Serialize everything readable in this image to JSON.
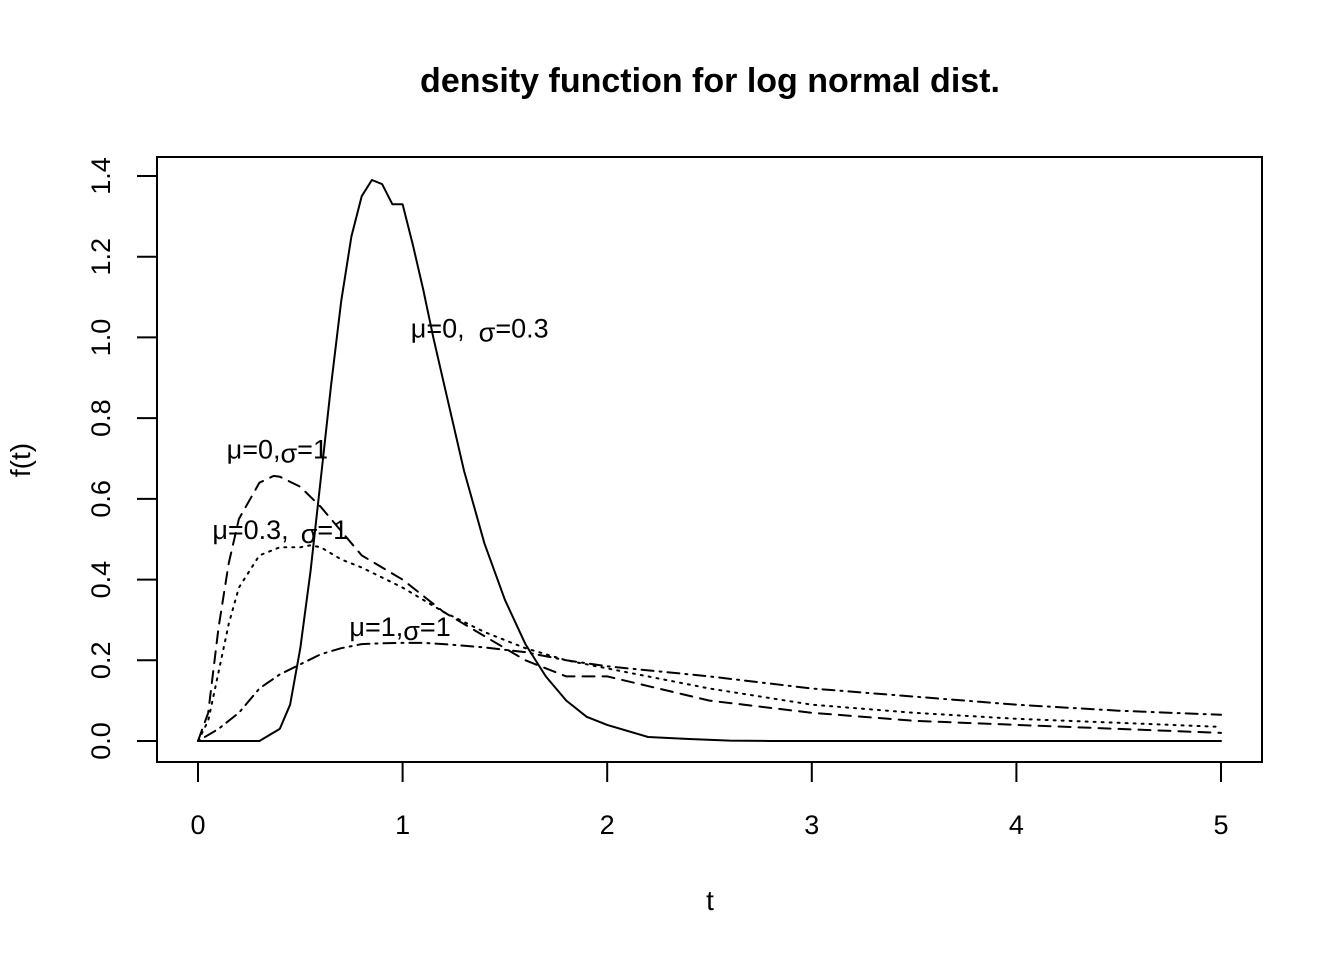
{
  "chart_data": {
    "type": "line",
    "title": "density function for log normal dist.",
    "xlabel": "t",
    "ylabel": "f(t)",
    "xlim": [
      0,
      5
    ],
    "ylim": [
      0,
      1.4
    ],
    "xticks": [
      "0",
      "1",
      "2",
      "3",
      "4",
      "5"
    ],
    "yticks": [
      "0.0",
      "0.2",
      "0.4",
      "0.6",
      "0.8",
      "1.0",
      "1.2",
      "1.4"
    ],
    "grid": false,
    "legend": "none",
    "series": [
      {
        "style": "solid",
        "x": [
          0,
          0.3,
          0.4,
          0.45,
          0.5,
          0.55,
          0.6,
          0.65,
          0.7,
          0.75,
          0.8,
          0.85,
          0.9,
          0.95,
          1.0,
          1.05,
          1.1,
          1.15,
          1.2,
          1.3,
          1.4,
          1.5,
          1.6,
          1.7,
          1.8,
          1.9,
          2.0,
          2.2,
          2.4,
          2.6,
          2.8,
          3.0,
          3.5,
          4.0,
          5.0
        ],
        "y": [
          0,
          0.0,
          0.03,
          0.09,
          0.23,
          0.42,
          0.65,
          0.88,
          1.09,
          1.25,
          1.35,
          1.39,
          1.38,
          1.33,
          1.33,
          1.23,
          1.12,
          1.0,
          0.89,
          0.67,
          0.49,
          0.35,
          0.24,
          0.16,
          0.1,
          0.06,
          0.04,
          0.01,
          0.005,
          0.001,
          0.0,
          0.0,
          0.0,
          0.0,
          0.0
        ]
      },
      {
        "style": "dashed",
        "x": [
          0,
          0.05,
          0.1,
          0.15,
          0.2,
          0.3,
          0.37,
          0.4,
          0.5,
          0.6,
          0.7,
          0.8,
          0.9,
          1.0,
          1.2,
          1.4,
          1.6,
          1.8,
          2.0,
          2.5,
          3.0,
          3.5,
          4.0,
          4.5,
          5.0
        ],
        "y": [
          0,
          0.07,
          0.28,
          0.44,
          0.55,
          0.64,
          0.657,
          0.655,
          0.63,
          0.58,
          0.52,
          0.46,
          0.43,
          0.4,
          0.32,
          0.26,
          0.2,
          0.16,
          0.16,
          0.1,
          0.07,
          0.05,
          0.04,
          0.03,
          0.02
        ]
      },
      {
        "style": "dotted",
        "x": [
          0,
          0.05,
          0.1,
          0.15,
          0.2,
          0.3,
          0.4,
          0.5,
          0.55,
          0.6,
          0.7,
          0.8,
          1.0,
          1.2,
          1.4,
          1.6,
          1.8,
          2.0,
          2.5,
          3.0,
          3.5,
          4.0,
          4.5,
          5.0
        ],
        "y": [
          0,
          0.05,
          0.17,
          0.29,
          0.38,
          0.46,
          0.48,
          0.48,
          0.485,
          0.48,
          0.45,
          0.43,
          0.38,
          0.32,
          0.27,
          0.23,
          0.2,
          0.18,
          0.13,
          0.09,
          0.07,
          0.055,
          0.045,
          0.035
        ]
      },
      {
        "style": "dotdash",
        "x": [
          0,
          0.1,
          0.2,
          0.3,
          0.4,
          0.5,
          0.6,
          0.7,
          0.8,
          0.9,
          1.0,
          1.1,
          1.2,
          1.4,
          1.6,
          1.8,
          2.0,
          2.5,
          3.0,
          3.5,
          4.0,
          4.5,
          5.0
        ],
        "y": [
          0,
          0.03,
          0.07,
          0.13,
          0.165,
          0.19,
          0.215,
          0.23,
          0.24,
          0.242,
          0.243,
          0.243,
          0.24,
          0.232,
          0.22,
          0.2,
          0.185,
          0.16,
          0.13,
          0.11,
          0.09,
          0.075,
          0.065
        ]
      }
    ],
    "annotations": [
      {
        "mu": "μ",
        "mu_text": "=0,",
        "sigma": "σ",
        "sigma_text": "=0.3",
        "x": 1.04,
        "y": 1.0,
        "gap": 14
      },
      {
        "mu": "μ",
        "mu_text": "=0,",
        "sigma": "σ",
        "sigma_text": "=1",
        "x": 0.14,
        "y": 0.7,
        "gap": 0
      },
      {
        "mu": "μ",
        "mu_text": "=0.3,",
        "sigma": "σ",
        "sigma_text": "=1",
        "x": 0.07,
        "y": 0.5,
        "gap": 12
      },
      {
        "mu": "μ",
        "mu_text": "=1,",
        "sigma": "σ",
        "sigma_text": "=1",
        "x": 0.74,
        "y": 0.26,
        "gap": 0
      }
    ]
  }
}
